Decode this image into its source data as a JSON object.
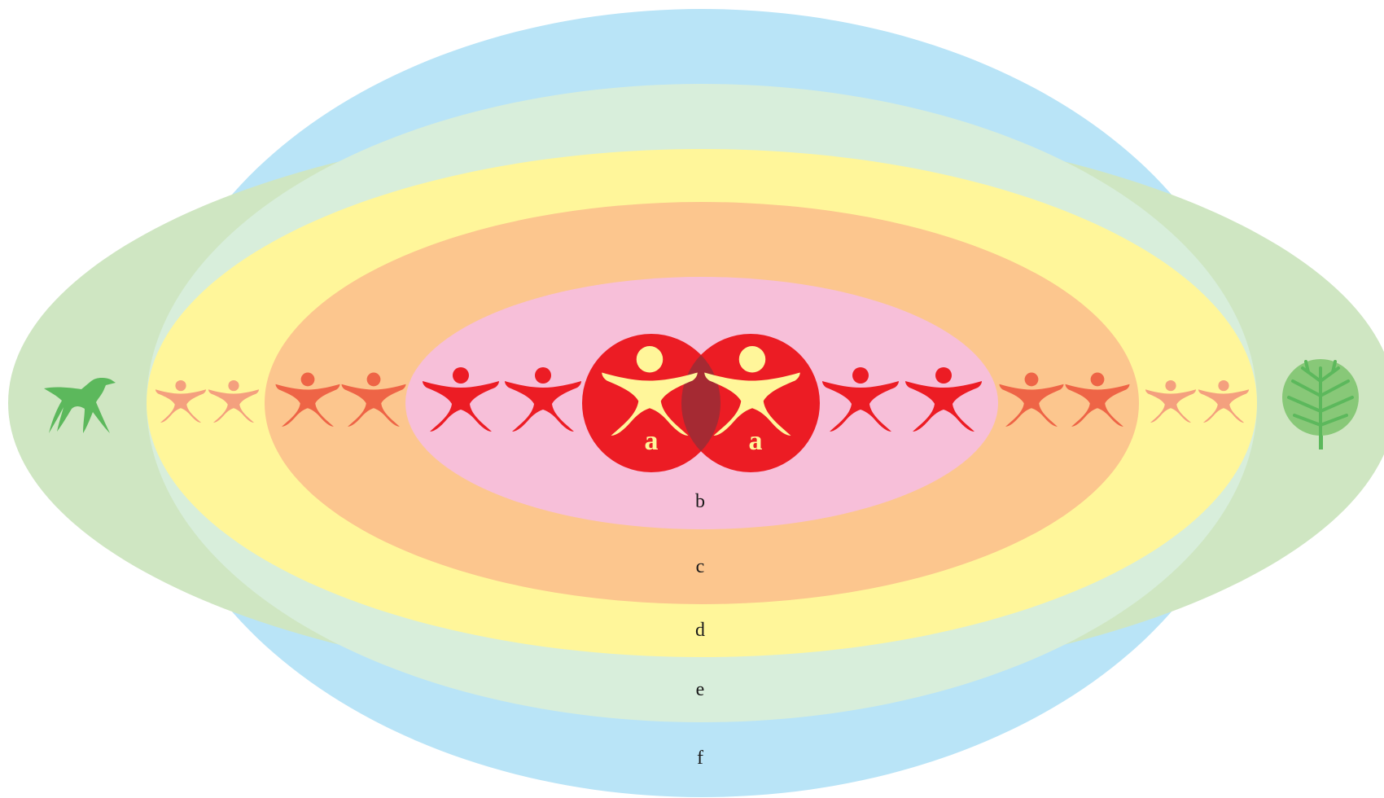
{
  "diagram": {
    "layers": [
      {
        "id": "f",
        "label": "f",
        "color": "#b9e4f7"
      },
      {
        "id": "outer-green",
        "label": "",
        "color": "#cfe6c2"
      },
      {
        "id": "e",
        "label": "e",
        "color": "#d8eedb"
      },
      {
        "id": "d",
        "label": "d",
        "color": "#fff69a"
      },
      {
        "id": "c",
        "label": "c",
        "color": "#fcc68e"
      },
      {
        "id": "b",
        "label": "b",
        "color": "#f7bfd9"
      }
    ],
    "core": {
      "label_left": "a",
      "label_right": "a",
      "circle_color": "#ec1c24",
      "overlap_color": "#a52a33",
      "figure_color": "#fff69a"
    },
    "figure_colors": {
      "inner": "#ec1c24",
      "middle": "#ee6446",
      "outer": "#f4a07e"
    },
    "animal_icon": {
      "name": "dinosaur-icon",
      "color": "#5cb85c"
    },
    "plant_icon": {
      "name": "tree-icon",
      "color": "#88c878",
      "line_color": "#5cb85c",
      "trunk_color": "#5cb85c"
    }
  }
}
